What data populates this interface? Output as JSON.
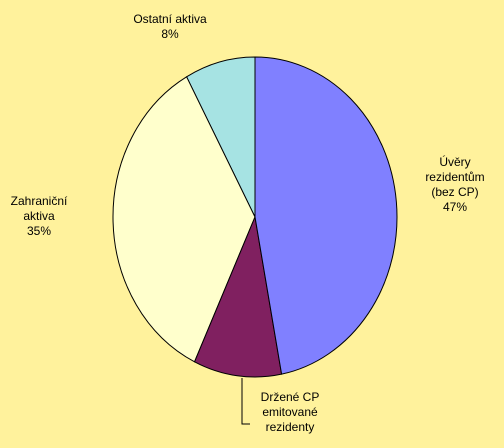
{
  "chart_data": {
    "type": "pie",
    "categories": [
      "Úvěry rezidentům (bez CP)",
      "Držené CP emitované rezidenty",
      "Zahraniční aktiva",
      "Ostatní aktiva"
    ],
    "values": [
      47,
      10,
      35,
      8
    ],
    "value_labels": [
      "47%",
      null,
      "35%",
      "8%"
    ],
    "colors": [
      "#8080FF",
      "#802060",
      "#FFFFCC",
      "#A6E3E3"
    ]
  }
}
